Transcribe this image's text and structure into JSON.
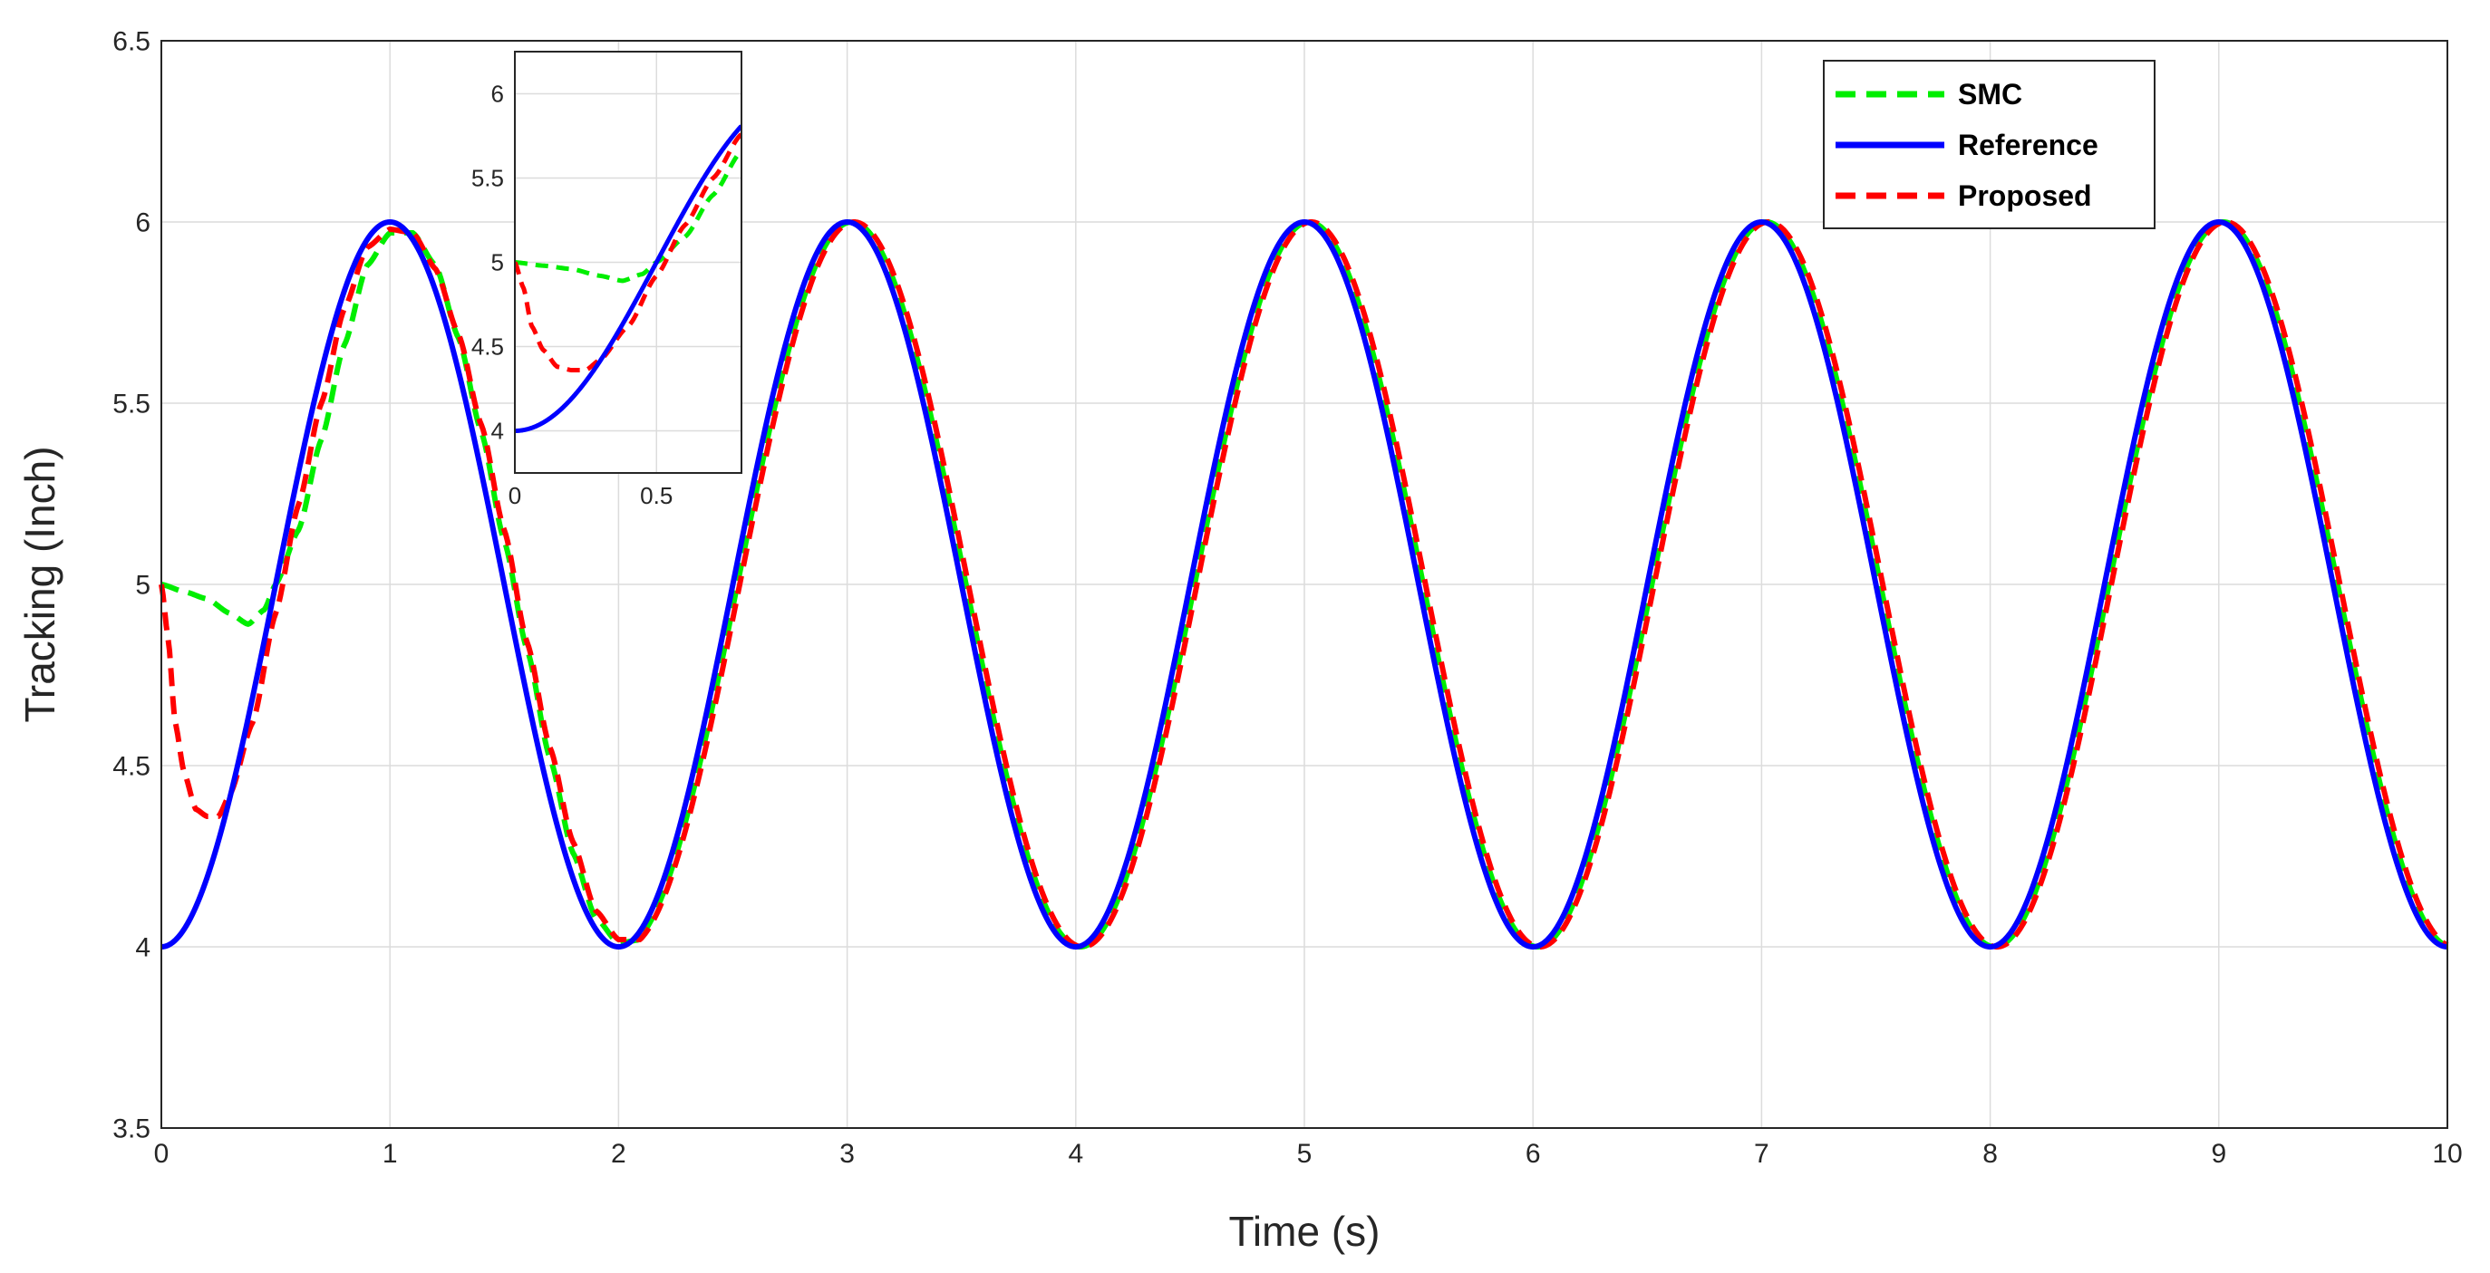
{
  "chart_data": [
    {
      "id": "main",
      "type": "line",
      "title": "",
      "xlabel": "Time (s)",
      "ylabel": "Tracking (Inch)",
      "xlim": [
        0,
        10
      ],
      "ylim": [
        3.5,
        6.5
      ],
      "xticks": [
        "0",
        "1",
        "2",
        "3",
        "4",
        "5",
        "6",
        "7",
        "8",
        "9",
        "10"
      ],
      "yticks": [
        "3.5",
        "4",
        "4.5",
        "5",
        "5.5",
        "6",
        "6.5"
      ],
      "grid": true,
      "legend_placement": "top-right",
      "legend_order": [
        "SMC",
        "Reference",
        "Proposed"
      ],
      "series": [
        {
          "name": "SMC",
          "color": "#00ee00",
          "style": "dashed",
          "points": [
            [
              0,
              5.0
            ],
            [
              0.1,
              4.98
            ],
            [
              0.2,
              4.96
            ],
            [
              0.3,
              4.92
            ],
            [
              0.38,
              4.89
            ],
            [
              0.45,
              4.93
            ],
            [
              0.5,
              5.0
            ],
            [
              0.6,
              5.15
            ],
            [
              0.7,
              5.4
            ],
            [
              0.8,
              5.66
            ],
            [
              0.9,
              5.88
            ],
            [
              1.0,
              5.97
            ],
            [
              1.1,
              5.97
            ],
            [
              1.2,
              5.88
            ],
            [
              1.3,
              5.68
            ],
            [
              1.4,
              5.42
            ],
            [
              1.5,
              5.12
            ],
            [
              1.6,
              4.82
            ],
            [
              1.7,
              4.52
            ],
            [
              1.8,
              4.26
            ],
            [
              1.9,
              4.08
            ],
            [
              2.0,
              4.01
            ],
            [
              2.1,
              4.02
            ]
          ],
          "tracks_reference_after": 2.1,
          "reference_lag": 0.02
        },
        {
          "name": "Reference",
          "color": "#0000ff",
          "style": "solid",
          "formula": "5 - cos(pi*t)",
          "x_range": [
            0,
            10
          ]
        },
        {
          "name": "Proposed",
          "color": "#ff0000",
          "style": "dashed",
          "points": [
            [
              0,
              5.0
            ],
            [
              0.03,
              4.85
            ],
            [
              0.06,
              4.62
            ],
            [
              0.1,
              4.48
            ],
            [
              0.15,
              4.38
            ],
            [
              0.2,
              4.36
            ],
            [
              0.25,
              4.36
            ],
            [
              0.3,
              4.42
            ],
            [
              0.4,
              4.62
            ],
            [
              0.5,
              4.92
            ],
            [
              0.6,
              5.22
            ],
            [
              0.7,
              5.5
            ],
            [
              0.8,
              5.76
            ],
            [
              0.9,
              5.93
            ],
            [
              1.0,
              5.98
            ],
            [
              1.1,
              5.97
            ],
            [
              1.2,
              5.87
            ],
            [
              1.3,
              5.69
            ],
            [
              1.4,
              5.44
            ],
            [
              1.5,
              5.15
            ],
            [
              1.6,
              4.84
            ],
            [
              1.7,
              4.55
            ],
            [
              1.8,
              4.29
            ],
            [
              1.9,
              4.1
            ],
            [
              2.0,
              4.02
            ],
            [
              2.1,
              4.02
            ]
          ],
          "tracks_reference_after": 2.1,
          "reference_lag": 0.03
        }
      ]
    },
    {
      "id": "inset",
      "type": "line",
      "title": "",
      "xlabel": "",
      "ylabel": "",
      "xlim": [
        0,
        0.8
      ],
      "ylim": [
        3.75,
        6.25
      ],
      "xticks": [
        "0",
        "0.5"
      ],
      "yticks": [
        "4",
        "4.5",
        "5",
        "5.5",
        "6"
      ],
      "grid": true,
      "note": "zoomed view of the start (0 to 0.8 s) for all three series"
    }
  ]
}
